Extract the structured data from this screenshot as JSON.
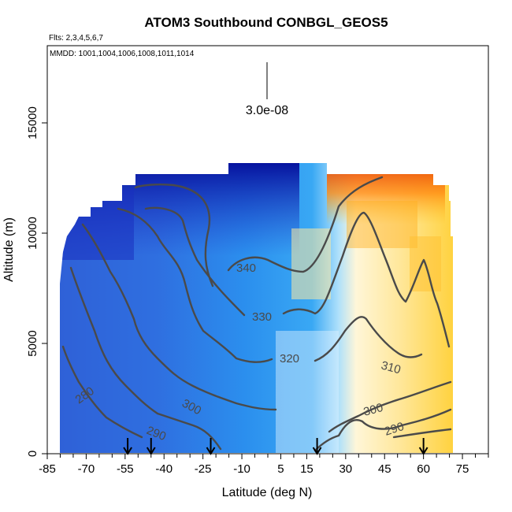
{
  "chart_data": {
    "type": "heatmap",
    "title": "ATOM3 Southbound CONBGL_GEOS5",
    "subtitle_flights": "Flts: 2,3,4,5,6,7",
    "subtitle_dates": "MMDD: 1001,1004,1006,1008,1011,1014",
    "xlabel": "Latitude (deg N)",
    "ylabel": "Altitude (m)",
    "xlim": [
      -85,
      85
    ],
    "ylim": [
      0,
      18500
    ],
    "x_ticks": [
      -85,
      -70,
      -55,
      -40,
      -25,
      -10,
      5,
      15,
      30,
      45,
      60,
      75
    ],
    "x_tick_labels": [
      "-85",
      "-70",
      "-55",
      "-40",
      "-25",
      "-10",
      "5",
      "15",
      "30",
      "45",
      "60",
      "75"
    ],
    "y_ticks": [
      0,
      5000,
      10000,
      15000
    ],
    "y_tick_labels": [
      "0",
      "5000",
      "10000",
      "15000"
    ],
    "scale_bar": {
      "label": "3.0e-08",
      "x": 0,
      "y_low": 15800,
      "y_high": 17500
    },
    "contour_labels": [
      {
        "text": "340",
        "lat": -4,
        "alt": 8300
      },
      {
        "text": "330",
        "lat": -1,
        "alt": 6100
      },
      {
        "text": "320",
        "lat": 5,
        "alt": 4300
      },
      {
        "text": "310",
        "lat": 28,
        "alt": 3900
      },
      {
        "text": "300",
        "lat": -27,
        "alt": 2000
      },
      {
        "text": "300",
        "lat": 28,
        "alt": 1800
      },
      {
        "text": "290",
        "lat": -44,
        "alt": 750
      },
      {
        "text": "290",
        "lat": 45,
        "alt": 1300
      },
      {
        "text": "280",
        "lat": -67,
        "alt": 2300
      }
    ],
    "flight_markers_lat": [
      -54,
      -45,
      -22,
      19,
      60
    ],
    "grid": false,
    "colormap": "blue-white-yellow-red"
  }
}
